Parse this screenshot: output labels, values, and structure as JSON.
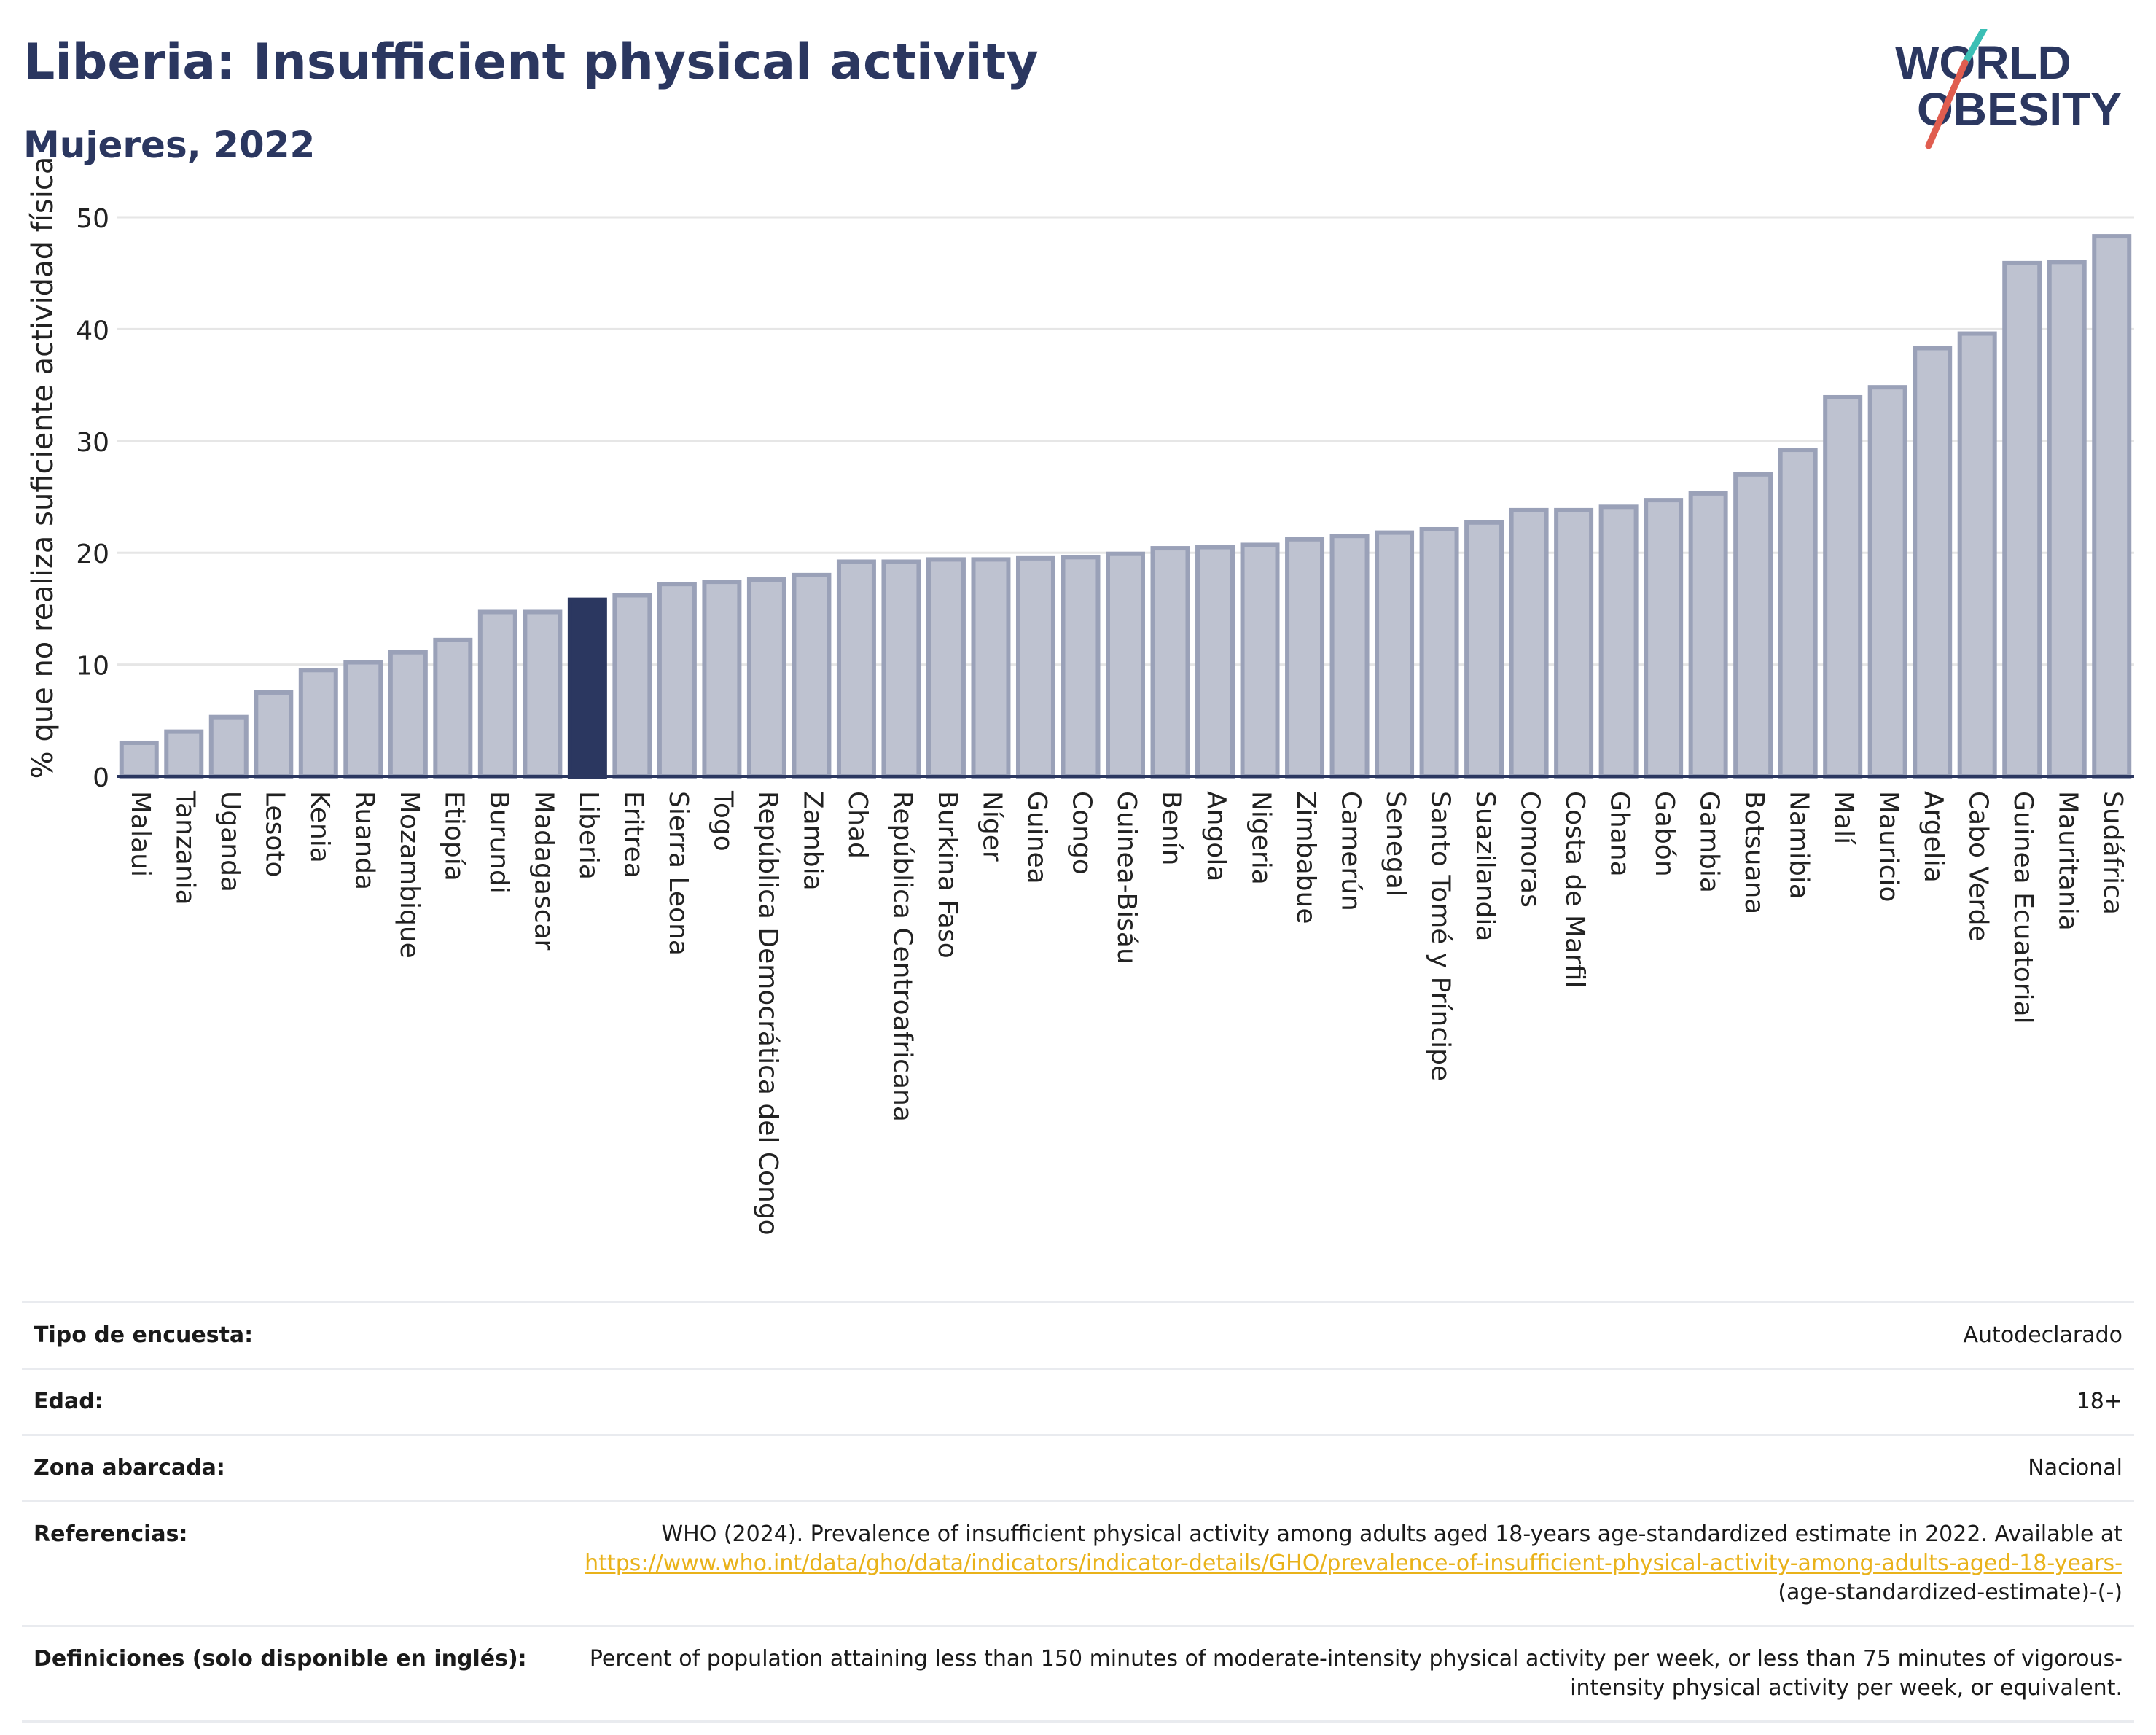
{
  "header": {
    "title": "Liberia: Insufficient physical activity",
    "subtitle": "Mujeres, 2022"
  },
  "logo": {
    "line1": "WORLD",
    "line2": "OBESITY"
  },
  "colors": {
    "bar": "#bec2d0",
    "bar_border": "#9aa1b8",
    "highlight": "#2b3760",
    "axis": "#2b3760",
    "grid": "#e6e6e6",
    "link": "#e9b21a"
  },
  "chart_data": {
    "type": "bar",
    "ylabel": "% que no realiza suficiente actividad física",
    "ylim": [
      0,
      50
    ],
    "yticks": [
      0,
      10,
      20,
      30,
      40,
      50
    ],
    "grid": true,
    "highlight": "Liberia",
    "categories": [
      "Malaui",
      "Tanzania",
      "Uganda",
      "Lesoto",
      "Kenia",
      "Ruanda",
      "Mozambique",
      "Etiopía",
      "Burundi",
      "Madagascar",
      "Liberia",
      "Eritrea",
      "Sierra Leona",
      "Togo",
      "República Democrática del Congo",
      "Zambia",
      "Chad",
      "República Centroafricana",
      "Burkina Faso",
      "Níger",
      "Guinea",
      "Congo",
      "Guinea-Bisáu",
      "Benín",
      "Angola",
      "Nigeria",
      "Zimbabue",
      "Camerún",
      "Senegal",
      "Santo Tomé y Príncipe",
      "Suazilandia",
      "Comoras",
      "Costa de Marfil",
      "Ghana",
      "Gabón",
      "Gambia",
      "Botsuana",
      "Namibia",
      "Malí",
      "Mauricio",
      "Argelia",
      "Cabo Verde",
      "Guinea Ecuatorial",
      "Mauritania",
      "Sudáfrica"
    ],
    "values": [
      3.0,
      4.0,
      5.3,
      7.5,
      9.5,
      10.2,
      11.1,
      12.2,
      14.7,
      14.7,
      15.8,
      16.2,
      17.2,
      17.4,
      17.6,
      18.0,
      19.2,
      19.2,
      19.4,
      19.4,
      19.5,
      19.6,
      19.9,
      20.4,
      20.5,
      20.7,
      21.2,
      21.5,
      21.8,
      22.1,
      22.7,
      23.8,
      23.8,
      24.1,
      24.7,
      25.3,
      27.0,
      29.2,
      33.9,
      34.8,
      38.3,
      39.6,
      45.9,
      46.0,
      48.3
    ]
  },
  "meta": [
    {
      "key": "Tipo de encuesta:",
      "value": "Autodeclarado"
    },
    {
      "key": "Edad:",
      "value": "18+"
    },
    {
      "key": "Zona abarcada:",
      "value": "Nacional"
    },
    {
      "key": "Referencias:",
      "value": "WHO (2024). Prevalence of insufficient physical activity among adults aged 18-years age-standardized estimate in 2022. Available at",
      "link": "https://www.who.int/data/gho/data/indicators/indicator-details/GHO/prevalence-of-insufficient-physical-activity-among-adults-aged-18-years-",
      "tail": "(age-standardized-estimate)-(-)"
    },
    {
      "key": "Definiciones (solo disponible en inglés):",
      "value": "Percent of population attaining less than 150 minutes of moderate-intensity physical activity per week, or less than 75 minutes of vigorous-intensity physical activity per week, or equivalent."
    }
  ]
}
